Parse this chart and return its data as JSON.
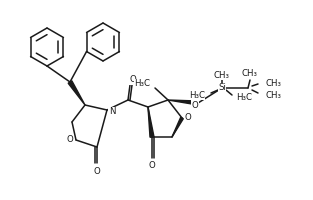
{
  "background_color": "#ffffff",
  "line_color": "#1a1a1a",
  "line_width": 1.1,
  "font_size": 6.2,
  "figsize": [
    3.13,
    2.0
  ],
  "dpi": 100,
  "xlim": [
    0,
    313
  ],
  "ylim": [
    0,
    200
  ]
}
